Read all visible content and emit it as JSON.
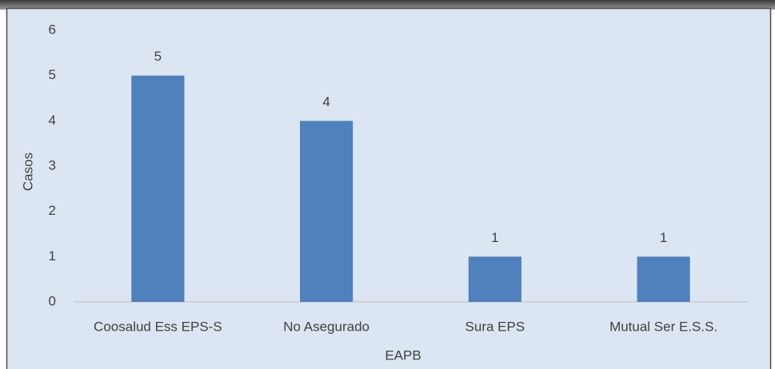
{
  "chart_data": {
    "type": "bar",
    "x_label": "EAPB",
    "y_label": "Casos",
    "categories": [
      "Coosalud Ess EPS-S",
      "No Asegurado",
      "Sura EPS",
      "Mutual Ser E.S.S."
    ],
    "values": [
      5,
      4,
      1,
      1
    ],
    "color": "#4f81bd",
    "ylim": [
      0,
      6
    ],
    "yticks": [
      0,
      1,
      2,
      3,
      4,
      5,
      6
    ],
    "grid": false
  }
}
